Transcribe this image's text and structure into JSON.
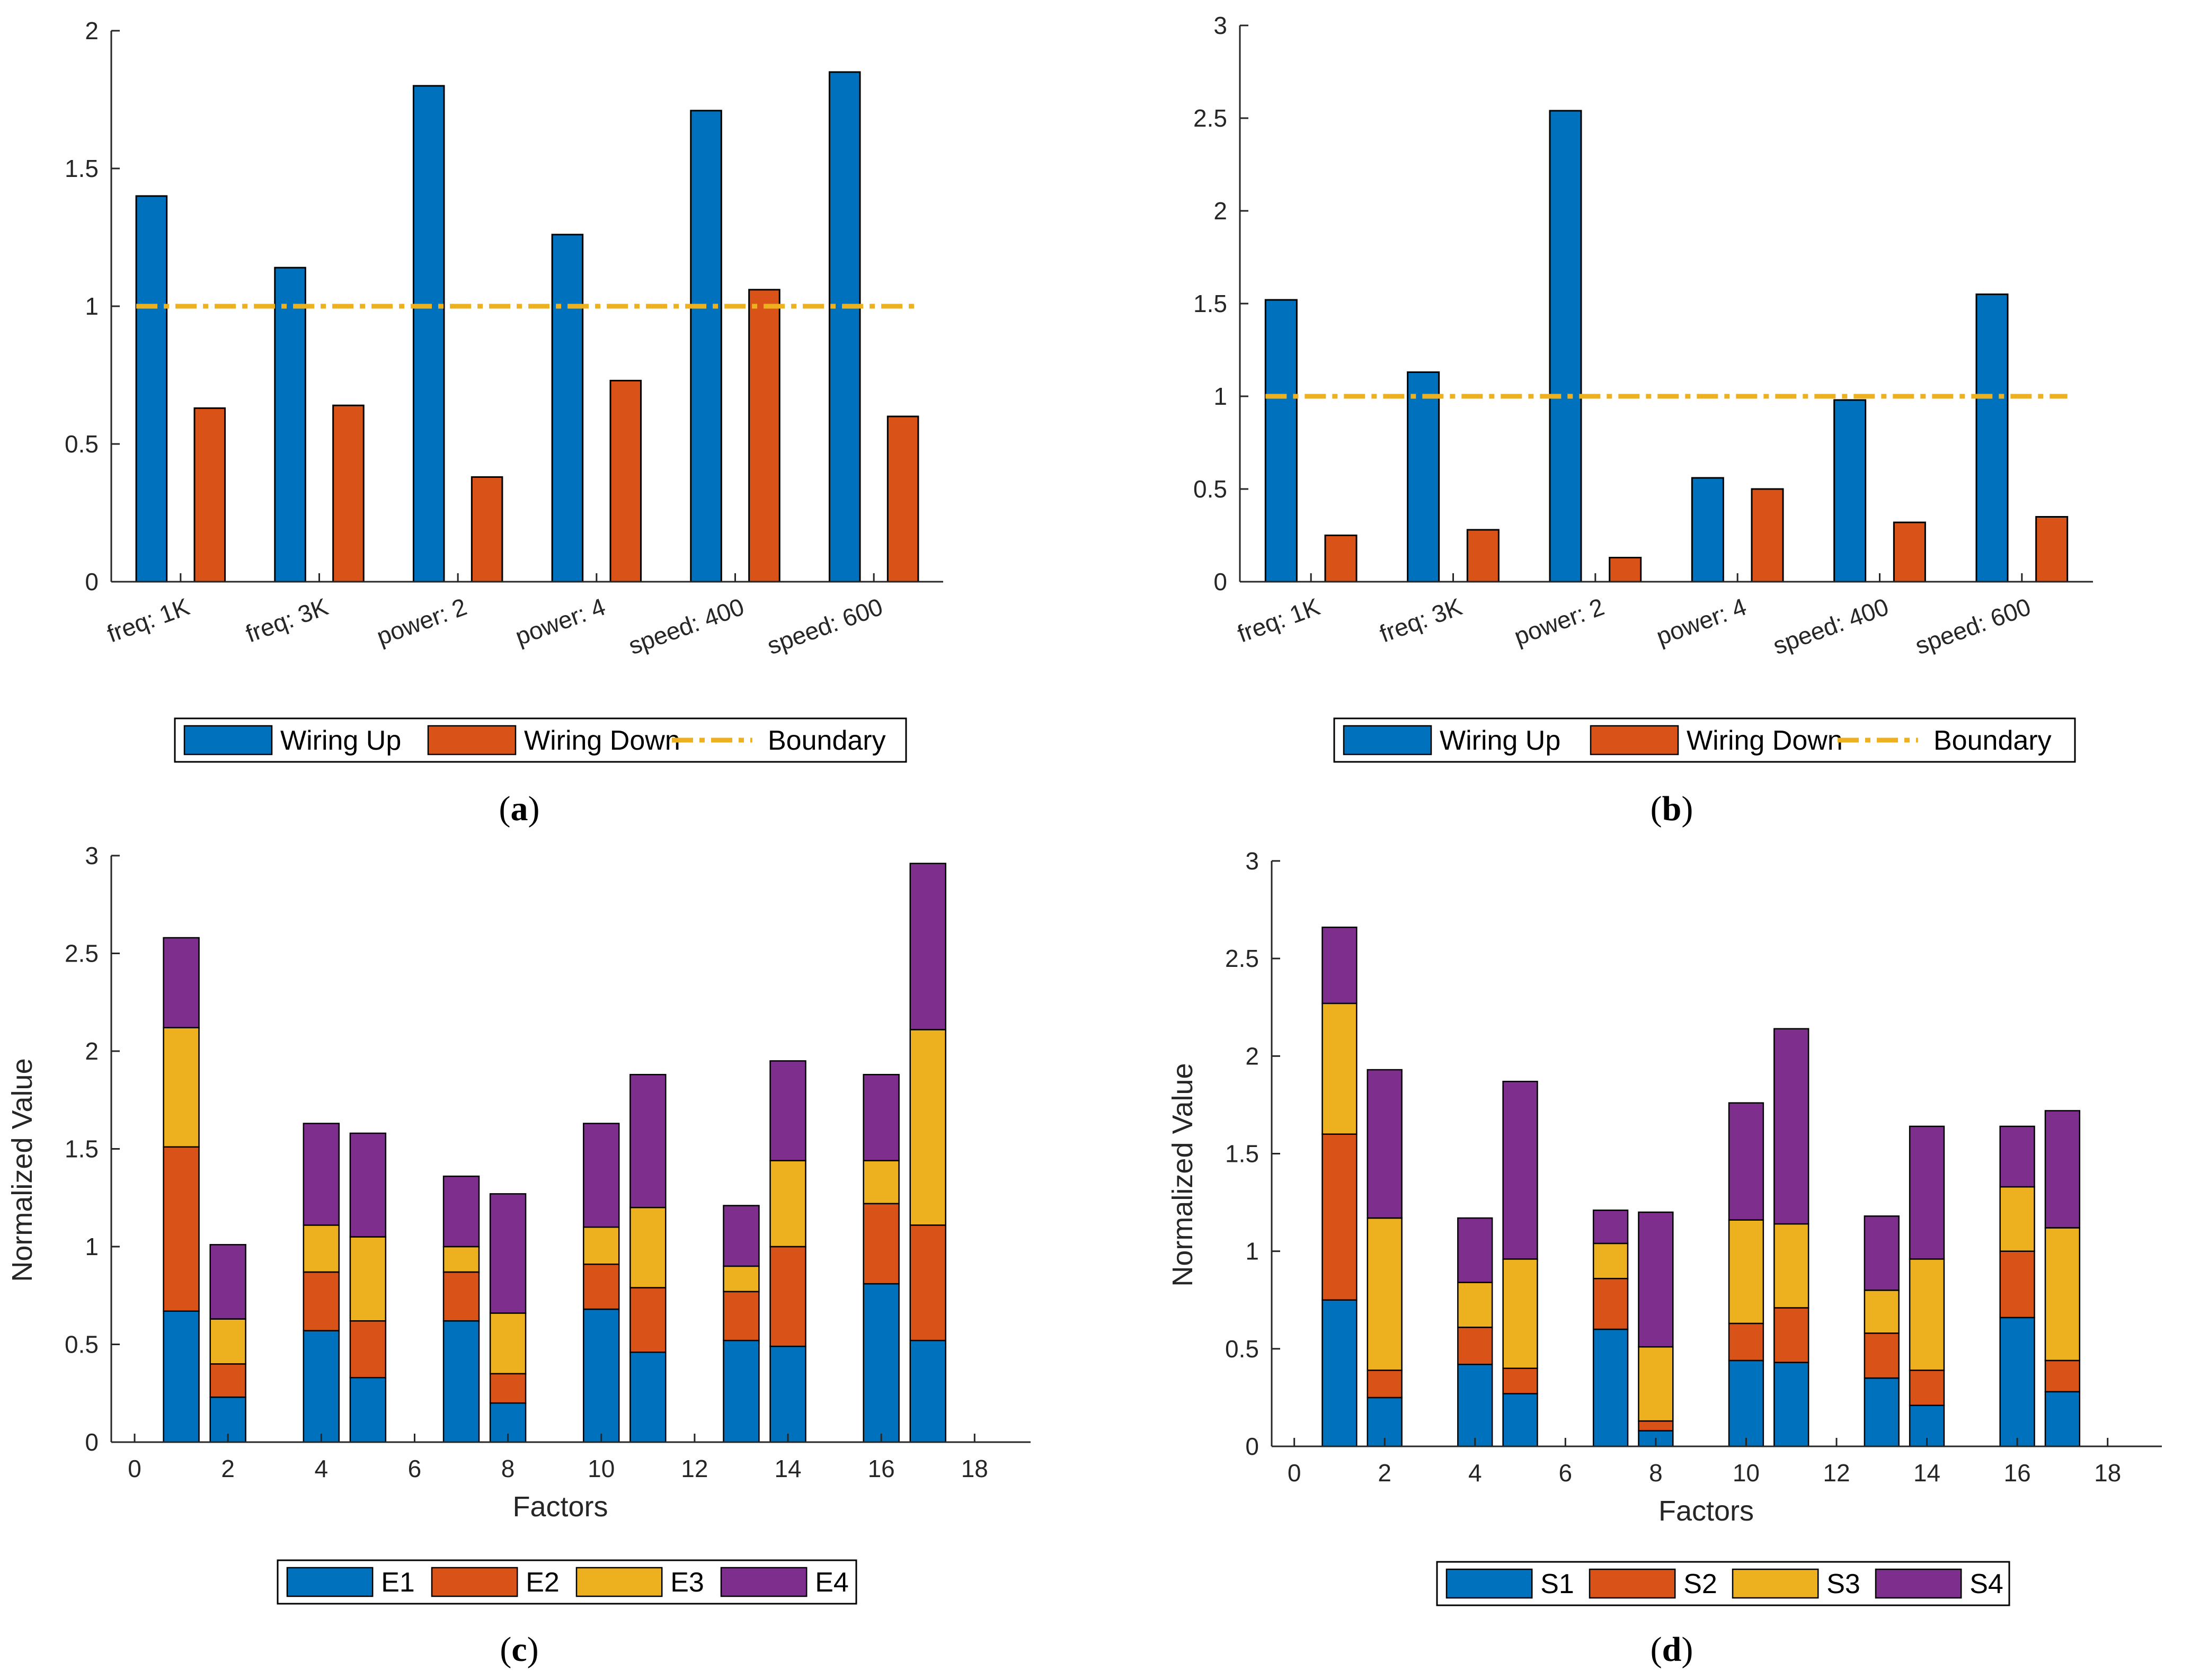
{
  "chart_data": [
    {
      "id": "a",
      "type": "bar",
      "caption": "a",
      "categories": [
        "freq: 1K",
        "freq: 3K",
        "power: 2",
        "power: 4",
        "speed: 400",
        "speed: 600"
      ],
      "series": [
        {
          "name": "Wiring Up",
          "values": [
            1.4,
            1.14,
            1.8,
            1.26,
            1.71,
            1.85
          ]
        },
        {
          "name": "Wiring Down",
          "values": [
            0.63,
            0.64,
            0.38,
            0.73,
            1.06,
            0.6
          ]
        }
      ],
      "boundary": {
        "name": "Boundary",
        "value": 1.0
      },
      "ylim": [
        0,
        2
      ],
      "yticks": [
        "0",
        "0.5",
        "1",
        "1.5",
        "2"
      ],
      "ytick_values": [
        0,
        0.5,
        1,
        1.5,
        2
      ],
      "legend": [
        "Wiring Up",
        "Wiring Down",
        "Boundary"
      ],
      "xlabel": "",
      "ylabel": ""
    },
    {
      "id": "b",
      "type": "bar",
      "caption": "b",
      "categories": [
        "freq: 1K",
        "freq: 3K",
        "power: 2",
        "power: 4",
        "speed: 400",
        "speed: 600"
      ],
      "series": [
        {
          "name": "Wiring Up",
          "values": [
            1.52,
            1.13,
            2.54,
            0.56,
            0.98,
            1.55
          ]
        },
        {
          "name": "Wiring Down",
          "values": [
            0.25,
            0.28,
            0.13,
            0.5,
            0.32,
            0.35
          ]
        }
      ],
      "boundary": {
        "name": "Boundary",
        "value": 1.0
      },
      "ylim": [
        0,
        3
      ],
      "yticks": [
        "0",
        "0.5",
        "1",
        "1.5",
        "2",
        "2.5",
        "3"
      ],
      "ytick_values": [
        0,
        0.5,
        1,
        1.5,
        2,
        2.5,
        3
      ],
      "legend": [
        "Wiring Up",
        "Wiring Down",
        "Boundary"
      ],
      "xlabel": "",
      "ylabel": ""
    },
    {
      "id": "c",
      "type": "stacked-bar",
      "caption": "c",
      "x": [
        1,
        2,
        4,
        5,
        7,
        8,
        10,
        11,
        13,
        14,
        16,
        17
      ],
      "series": [
        {
          "name": "E1",
          "values": [
            0.67,
            0.23,
            0.57,
            0.33,
            0.62,
            0.2,
            0.68,
            0.46,
            0.52,
            0.49,
            0.81,
            0.52
          ]
        },
        {
          "name": "E2",
          "values": [
            0.84,
            0.17,
            0.3,
            0.29,
            0.25,
            0.15,
            0.23,
            0.33,
            0.25,
            0.51,
            0.41,
            0.59
          ]
        },
        {
          "name": "E3",
          "values": [
            0.61,
            0.23,
            0.24,
            0.43,
            0.13,
            0.31,
            0.19,
            0.41,
            0.13,
            0.44,
            0.22,
            1.0
          ]
        },
        {
          "name": "E4",
          "values": [
            0.46,
            0.38,
            0.52,
            0.53,
            0.36,
            0.61,
            0.53,
            0.68,
            0.31,
            0.51,
            0.44,
            0.85
          ]
        }
      ],
      "xlim": [
        -0.5,
        19.2
      ],
      "ylim": [
        0,
        3
      ],
      "xticks": [
        "0",
        "2",
        "4",
        "6",
        "8",
        "10",
        "12",
        "14",
        "16",
        "18"
      ],
      "xtick_values": [
        0,
        2,
        4,
        6,
        8,
        10,
        12,
        14,
        16,
        18
      ],
      "yticks": [
        "0",
        "0.5",
        "1",
        "1.5",
        "2",
        "2.5",
        "3"
      ],
      "ytick_values": [
        0,
        0.5,
        1,
        1.5,
        2,
        2.5,
        3
      ],
      "legend": [
        "E1",
        "E2",
        "E3",
        "E4"
      ],
      "xlabel": "Factors",
      "ylabel": "Normalized Value"
    },
    {
      "id": "d",
      "type": "stacked-bar",
      "caption": "d",
      "x": [
        1,
        2,
        4,
        5,
        7,
        8,
        10,
        11,
        13,
        14,
        16,
        17
      ],
      "series": [
        {
          "name": "S1",
          "values": [
            0.75,
            0.25,
            0.42,
            0.27,
            0.6,
            0.08,
            0.44,
            0.43,
            0.35,
            0.21,
            0.66,
            0.28
          ]
        },
        {
          "name": "S2",
          "values": [
            0.85,
            0.14,
            0.19,
            0.13,
            0.26,
            0.05,
            0.19,
            0.28,
            0.23,
            0.18,
            0.34,
            0.16
          ]
        },
        {
          "name": "S3",
          "values": [
            0.67,
            0.78,
            0.23,
            0.56,
            0.18,
            0.38,
            0.53,
            0.43,
            0.22,
            0.57,
            0.33,
            0.68
          ]
        },
        {
          "name": "S4",
          "values": [
            0.39,
            0.76,
            0.33,
            0.91,
            0.17,
            0.69,
            0.6,
            1.0,
            0.38,
            0.68,
            0.31,
            0.6
          ]
        }
      ],
      "xlim": [
        -0.5,
        19.2
      ],
      "ylim": [
        0,
        3
      ],
      "xticks": [
        "0",
        "2",
        "4",
        "6",
        "8",
        "10",
        "12",
        "14",
        "16",
        "18"
      ],
      "xtick_values": [
        0,
        2,
        4,
        6,
        8,
        10,
        12,
        14,
        16,
        18
      ],
      "yticks": [
        "0",
        "0.5",
        "1",
        "1.5",
        "2",
        "2.5",
        "3"
      ],
      "ytick_values": [
        0,
        0.5,
        1,
        1.5,
        2,
        2.5,
        3
      ],
      "legend": [
        "S1",
        "S2",
        "S3",
        "S4"
      ],
      "xlabel": "Factors",
      "ylabel": "Normalized Value"
    }
  ],
  "colors": {
    "blue": "#0072BD",
    "orange": "#D95319",
    "yellow": "#EDB120",
    "purple": "#7E2F8E",
    "boundary": "#EDB120",
    "axis": "#262626"
  }
}
